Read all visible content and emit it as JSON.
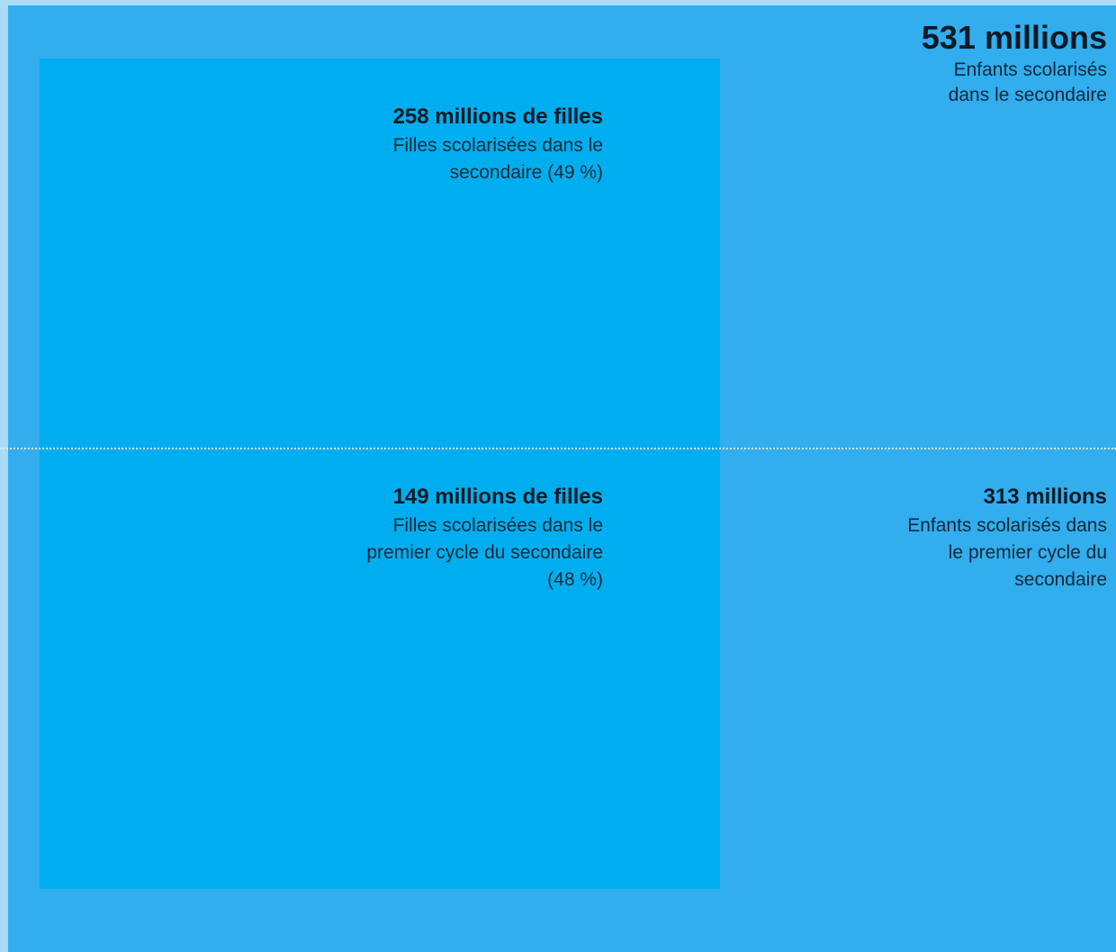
{
  "chart_data": {
    "type": "area",
    "items": [
      {
        "id": "total_secondary",
        "value": 531,
        "value_label": "531 millions",
        "description_lines": [
          "Enfants scolarisés",
          "dans le secondaire"
        ]
      },
      {
        "id": "total_lower_secondary",
        "value": 313,
        "value_label": "313 millions",
        "description_lines": [
          "Enfants scolarisés dans",
          "le premier cycle du",
          "secondaire"
        ]
      },
      {
        "id": "girls_secondary",
        "value": 258,
        "percent": 49,
        "value_label": "258 millions de filles",
        "description_lines": [
          "Filles scolarisées dans le",
          "secondaire (49 %)"
        ]
      },
      {
        "id": "girls_lower_secondary",
        "value": 149,
        "percent": 48,
        "value_label": "149 millions de filles",
        "description_lines": [
          "Filles scolarisées dans le",
          "premier cycle du secondaire",
          "(48 %)"
        ]
      }
    ],
    "colors": {
      "background": "#a9dcf6",
      "total_area": "#32adee",
      "girls_area": "#00aeef",
      "divider": "#d6effc",
      "text": "#0b1a24"
    }
  }
}
